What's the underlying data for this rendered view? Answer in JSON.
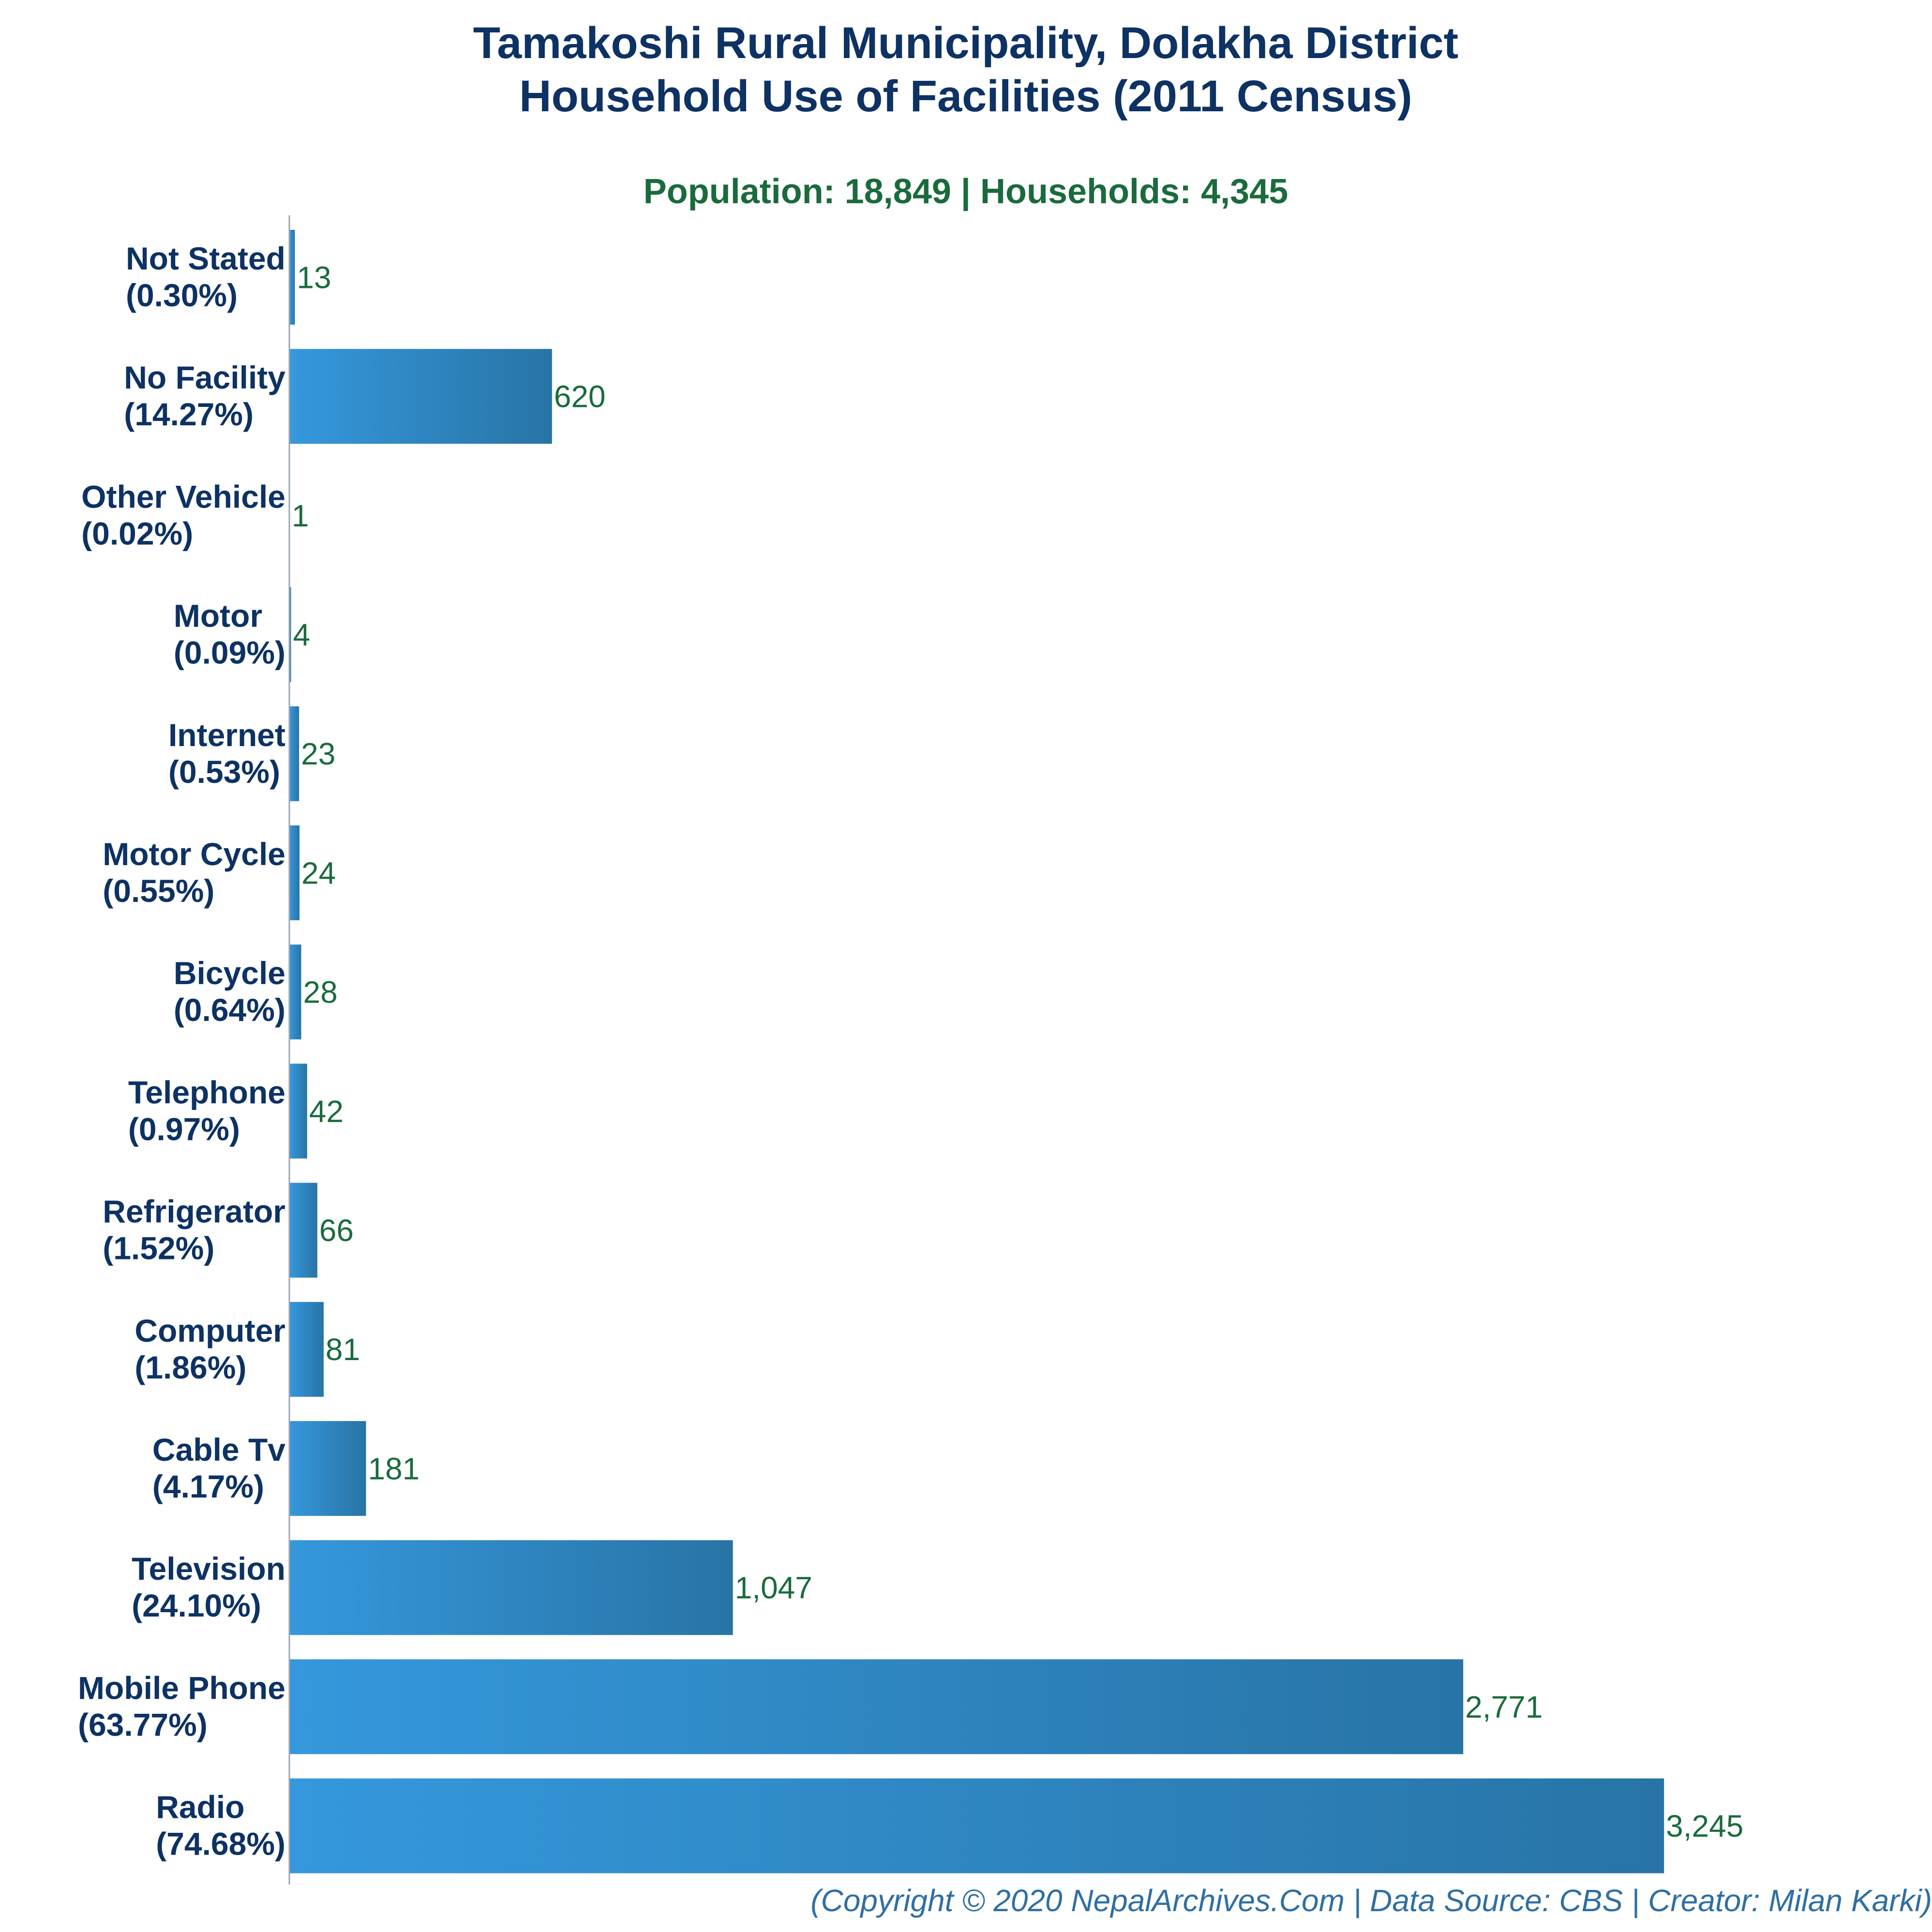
{
  "chart_data": {
    "type": "bar",
    "orientation": "horizontal",
    "title": "Tamakoshi Rural Municipality, Dolakha District",
    "title_line2": "Household Use of Facilities (2011 Census)",
    "subtitle": "Population: 18,849 | Households: 4,345",
    "categories": [
      "Not Stated",
      "No Facility",
      "Other Vehicle",
      "Motor",
      "Internet",
      "Motor Cycle",
      "Bicycle",
      "Telephone",
      "Refrigerator",
      "Computer",
      "Cable Tv",
      "Television",
      "Mobile Phone",
      "Radio"
    ],
    "percent_labels": [
      "(0.30%)",
      "(14.27%)",
      "(0.02%)",
      "(0.09%)",
      "(0.53%)",
      "(0.55%)",
      "(0.64%)",
      "(0.97%)",
      "(1.52%)",
      "(1.86%)",
      "(4.17%)",
      "(24.10%)",
      "(63.77%)",
      "(74.68%)"
    ],
    "values": [
      13,
      620,
      1,
      4,
      23,
      24,
      28,
      42,
      66,
      81,
      181,
      1047,
      2771,
      3245
    ],
    "value_labels": [
      "13",
      "620",
      "1",
      "4",
      "23",
      "24",
      "28",
      "42",
      "66",
      "81",
      "181",
      "1,047",
      "2,771",
      "3,245"
    ],
    "xlim": [
      0,
      3600
    ],
    "grid": false,
    "legend": "none",
    "colors": {
      "bar_start": "#3598dc",
      "bar_end": "#2874a6",
      "title": "#0d3263",
      "subtitle": "#1a6b3c",
      "value_label": "#1a6b3c",
      "footer": "#2f6fa3",
      "axis": "#9aa5b1"
    },
    "footer": "(Copyright © 2020 NepalArchives.Com | Data Source: CBS | Creator: Milan Karki)"
  }
}
